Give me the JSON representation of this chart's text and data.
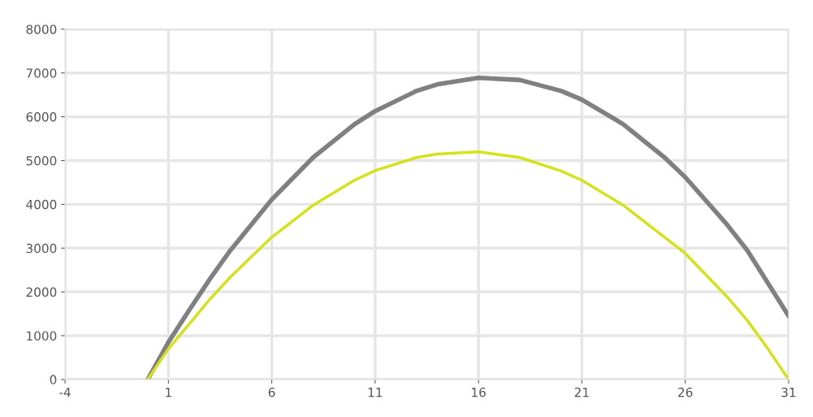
{
  "chart_data": {
    "type": "line",
    "x": [
      0,
      1,
      2,
      3,
      4,
      6,
      8,
      10,
      11,
      13,
      14,
      16,
      18,
      20,
      21,
      23,
      25,
      26,
      28,
      29,
      30,
      31
    ],
    "series": [
      {
        "color": "#808080",
        "values": [
          0,
          850,
          1580,
          2290,
          2950,
          4110,
          5070,
          5830,
          6130,
          6590,
          6740,
          6890,
          6840,
          6590,
          6390,
          5830,
          5070,
          4620,
          3550,
          2950,
          2200,
          1450
        ]
      },
      {
        "color": "#d4e21a",
        "values": [
          0,
          700,
          1260,
          1830,
          2340,
          3250,
          3980,
          4550,
          4770,
          5070,
          5150,
          5200,
          5070,
          4760,
          4550,
          3980,
          3250,
          2880,
          1900,
          1350,
          700,
          0
        ]
      }
    ],
    "xlim": [
      -4,
      31
    ],
    "xticks": [
      -4,
      1,
      6,
      11,
      16,
      21,
      26,
      31
    ],
    "ylim": [
      0,
      8000
    ],
    "yticks": [
      0,
      1000,
      2000,
      3000,
      4000,
      5000,
      6000,
      7000,
      8000
    ],
    "grid": true,
    "marker": "none",
    "line_style": "solid"
  }
}
